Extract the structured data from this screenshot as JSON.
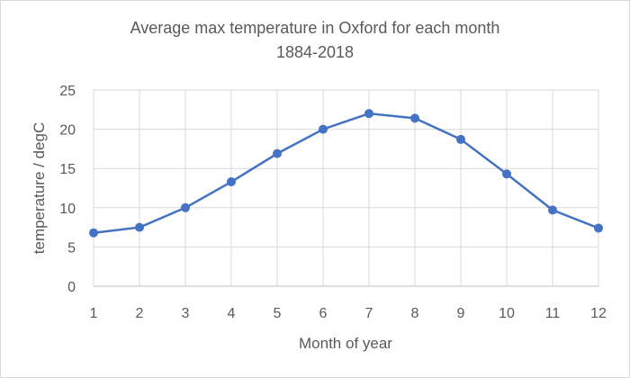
{
  "chart_data": {
    "type": "line",
    "title": "Average max temperature in Oxford for each month",
    "subtitle": "1884-2018",
    "xlabel": "Month of year",
    "ylabel": "temperature / degC",
    "x": [
      1,
      2,
      3,
      4,
      5,
      6,
      7,
      8,
      9,
      10,
      11,
      12
    ],
    "values": [
      6.8,
      7.5,
      10.0,
      13.3,
      16.9,
      20.0,
      22.0,
      21.4,
      18.7,
      14.3,
      9.7,
      7.4
    ],
    "xlim": [
      1,
      12
    ],
    "ylim": [
      0,
      25
    ],
    "yticks": [
      0,
      5,
      10,
      15,
      20,
      25
    ],
    "grid": true,
    "legend": "none",
    "color": "#4472C4"
  }
}
